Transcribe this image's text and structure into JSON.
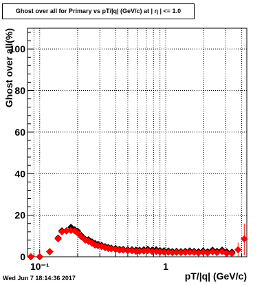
{
  "chart_data": {
    "type": "scatter",
    "title": "Ghost over all for Primary vs pT/|q| (GeV/c) at | η | <= 1.0",
    "xlabel": "pT/|q| (GeV/c)",
    "ylabel": "Ghost over all(%)",
    "x_scale": "log",
    "xlim": [
      0.08,
      4.4
    ],
    "ylim": [
      0,
      110
    ],
    "x_tick_labels": [
      "10⁻¹",
      "1"
    ],
    "y_tick_labels": [
      "0",
      "20",
      "40",
      "60",
      "80",
      "100"
    ],
    "grid": true,
    "series": [
      {
        "marker": "diamond",
        "color": "#000000",
        "points": [
          [
            0.085,
            0.0
          ],
          [
            0.1,
            0.0
          ],
          [
            0.12,
            2.4
          ],
          [
            0.14,
            9.0
          ],
          [
            0.15,
            12.5
          ],
          [
            0.163,
            12.5
          ],
          [
            0.177,
            14.2
          ],
          [
            0.19,
            13.0
          ],
          [
            0.2,
            12.3
          ],
          [
            0.214,
            10.2
          ],
          [
            0.23,
            8.4
          ],
          [
            0.244,
            8.2
          ],
          [
            0.26,
            7.2
          ],
          [
            0.275,
            6.4
          ],
          [
            0.29,
            6.0
          ],
          [
            0.31,
            5.5
          ],
          [
            0.33,
            4.9
          ],
          [
            0.35,
            4.5
          ],
          [
            0.37,
            4.2
          ],
          [
            0.4,
            4.0
          ],
          [
            0.43,
            3.6
          ],
          [
            0.46,
            3.6
          ],
          [
            0.5,
            3.4
          ],
          [
            0.54,
            3.4
          ],
          [
            0.58,
            3.2
          ],
          [
            0.62,
            3.2
          ],
          [
            0.67,
            3.4
          ],
          [
            0.72,
            3.6
          ],
          [
            0.78,
            3.2
          ],
          [
            0.84,
            3.4
          ],
          [
            0.9,
            3.0
          ],
          [
            0.97,
            2.9
          ],
          [
            1.05,
            2.8
          ],
          [
            1.13,
            2.5
          ],
          [
            1.22,
            2.6
          ],
          [
            1.32,
            2.5
          ],
          [
            1.43,
            2.6
          ],
          [
            1.55,
            2.8
          ],
          [
            1.68,
            2.6
          ],
          [
            1.82,
            2.4
          ],
          [
            1.98,
            2.8
          ],
          [
            2.15,
            2.4
          ],
          [
            2.35,
            3.2
          ],
          [
            2.55,
            2.6
          ],
          [
            2.8,
            3.2
          ],
          [
            3.05,
            2.4
          ],
          [
            3.35,
            2.2
          ]
        ]
      },
      {
        "marker": "diamond",
        "color": "#ff0000",
        "points": [
          [
            0.085,
            0.0,
            0,
            0
          ],
          [
            0.1,
            0.0,
            0,
            0
          ],
          [
            0.12,
            2.5,
            0.8,
            0.8
          ],
          [
            0.14,
            8.6,
            1.2,
            1.2
          ],
          [
            0.15,
            12.0,
            1.0,
            1.0
          ],
          [
            0.163,
            12.4,
            1.0,
            1.0
          ],
          [
            0.177,
            12.6,
            1.0,
            1.0
          ],
          [
            0.19,
            12.4,
            1.0,
            1.0
          ],
          [
            0.2,
            11.4,
            0.9,
            0.9
          ],
          [
            0.214,
            9.6,
            0.8,
            0.8
          ],
          [
            0.23,
            8.0,
            0.7,
            0.7
          ],
          [
            0.244,
            7.4,
            0.7,
            0.7
          ],
          [
            0.26,
            6.5,
            0.6,
            0.6
          ],
          [
            0.275,
            5.6,
            0.6,
            0.6
          ],
          [
            0.29,
            5.3,
            0.5,
            0.5
          ],
          [
            0.31,
            4.9,
            0.5,
            0.5
          ],
          [
            0.33,
            4.4,
            0.5,
            0.5
          ],
          [
            0.35,
            4.0,
            0.5,
            0.5
          ],
          [
            0.37,
            3.8,
            0.4,
            0.4
          ],
          [
            0.4,
            3.5,
            0.4,
            0.4
          ],
          [
            0.43,
            3.2,
            0.4,
            0.4
          ],
          [
            0.46,
            3.2,
            0.4,
            0.4
          ],
          [
            0.5,
            2.9,
            0.4,
            0.4
          ],
          [
            0.54,
            2.9,
            0.4,
            0.4
          ],
          [
            0.58,
            2.6,
            0.4,
            0.4
          ],
          [
            0.62,
            2.6,
            0.4,
            0.4
          ],
          [
            0.67,
            2.7,
            0.4,
            0.4
          ],
          [
            0.72,
            2.9,
            0.4,
            0.4
          ],
          [
            0.78,
            2.5,
            0.4,
            0.4
          ],
          [
            0.84,
            2.5,
            0.4,
            0.4
          ],
          [
            0.9,
            2.3,
            0.4,
            0.4
          ],
          [
            0.97,
            2.2,
            0.4,
            0.4
          ],
          [
            1.05,
            2.2,
            0.4,
            0.4
          ],
          [
            1.13,
            2.0,
            0.4,
            0.4
          ],
          [
            1.22,
            2.1,
            0.4,
            0.4
          ],
          [
            1.32,
            2.0,
            0.4,
            0.4
          ],
          [
            1.43,
            2.1,
            0.5,
            0.5
          ],
          [
            1.55,
            2.2,
            0.5,
            0.5
          ],
          [
            1.68,
            2.1,
            0.5,
            0.5
          ],
          [
            1.82,
            1.8,
            0.5,
            0.5
          ],
          [
            1.98,
            2.2,
            0.6,
            0.6
          ],
          [
            2.15,
            1.8,
            0.6,
            0.6
          ],
          [
            2.35,
            2.4,
            0.7,
            0.7
          ],
          [
            2.55,
            2.0,
            0.8,
            0.8
          ],
          [
            2.8,
            2.5,
            0.9,
            0.9
          ],
          [
            3.05,
            1.6,
            1.0,
            1.0
          ],
          [
            3.35,
            1.6,
            1.2,
            1.2
          ],
          [
            3.75,
            3.4,
            3.2,
            3.4
          ],
          [
            4.2,
            8.6,
            8.0,
            7.4
          ]
        ]
      }
    ]
  },
  "timestamp": "Wed Jun  7 18:14:36 2017"
}
